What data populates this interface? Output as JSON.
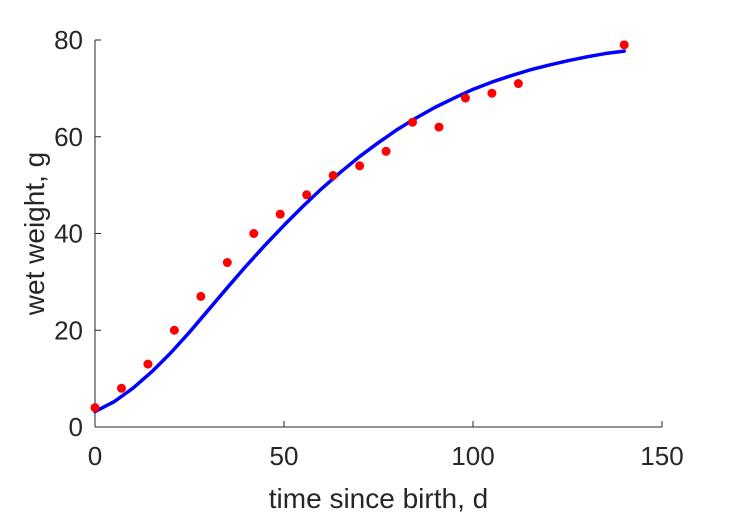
{
  "chart_data": {
    "type": "scatter",
    "title": "",
    "xlabel": "time since birth, d",
    "ylabel": "wet weight, g",
    "xlim": [
      0,
      150
    ],
    "ylim": [
      0,
      80
    ],
    "xticks": [
      0,
      50,
      100,
      150
    ],
    "yticks": [
      0,
      20,
      40,
      60,
      80
    ],
    "grid": false,
    "series": [
      {
        "kind": "points",
        "color": "#ff0000",
        "x": [
          0,
          7,
          14,
          21,
          28,
          35,
          42,
          49,
          56,
          63,
          70,
          77,
          84,
          91,
          98,
          105,
          112,
          140
        ],
        "y": [
          4,
          8,
          13,
          20,
          27,
          34,
          40,
          44,
          48,
          52,
          54,
          57,
          63,
          62,
          68,
          69,
          71,
          79
        ]
      },
      {
        "kind": "line",
        "color": "#0000ff",
        "x": [
          0,
          5,
          10,
          15,
          20,
          25,
          30,
          35,
          40,
          45,
          50,
          55,
          60,
          65,
          70,
          75,
          80,
          85,
          90,
          95,
          100,
          105,
          110,
          115,
          120,
          125,
          130,
          135,
          140
        ],
        "y": [
          3.2,
          5.2,
          8.0,
          11.4,
          15.3,
          19.6,
          24.2,
          28.8,
          33.3,
          37.6,
          41.7,
          45.6,
          49.3,
          52.7,
          55.9,
          58.8,
          61.5,
          63.9,
          66.1,
          68.0,
          69.8,
          71.3,
          72.6,
          73.8,
          74.8,
          75.7,
          76.5,
          77.2,
          77.7
        ]
      }
    ]
  }
}
